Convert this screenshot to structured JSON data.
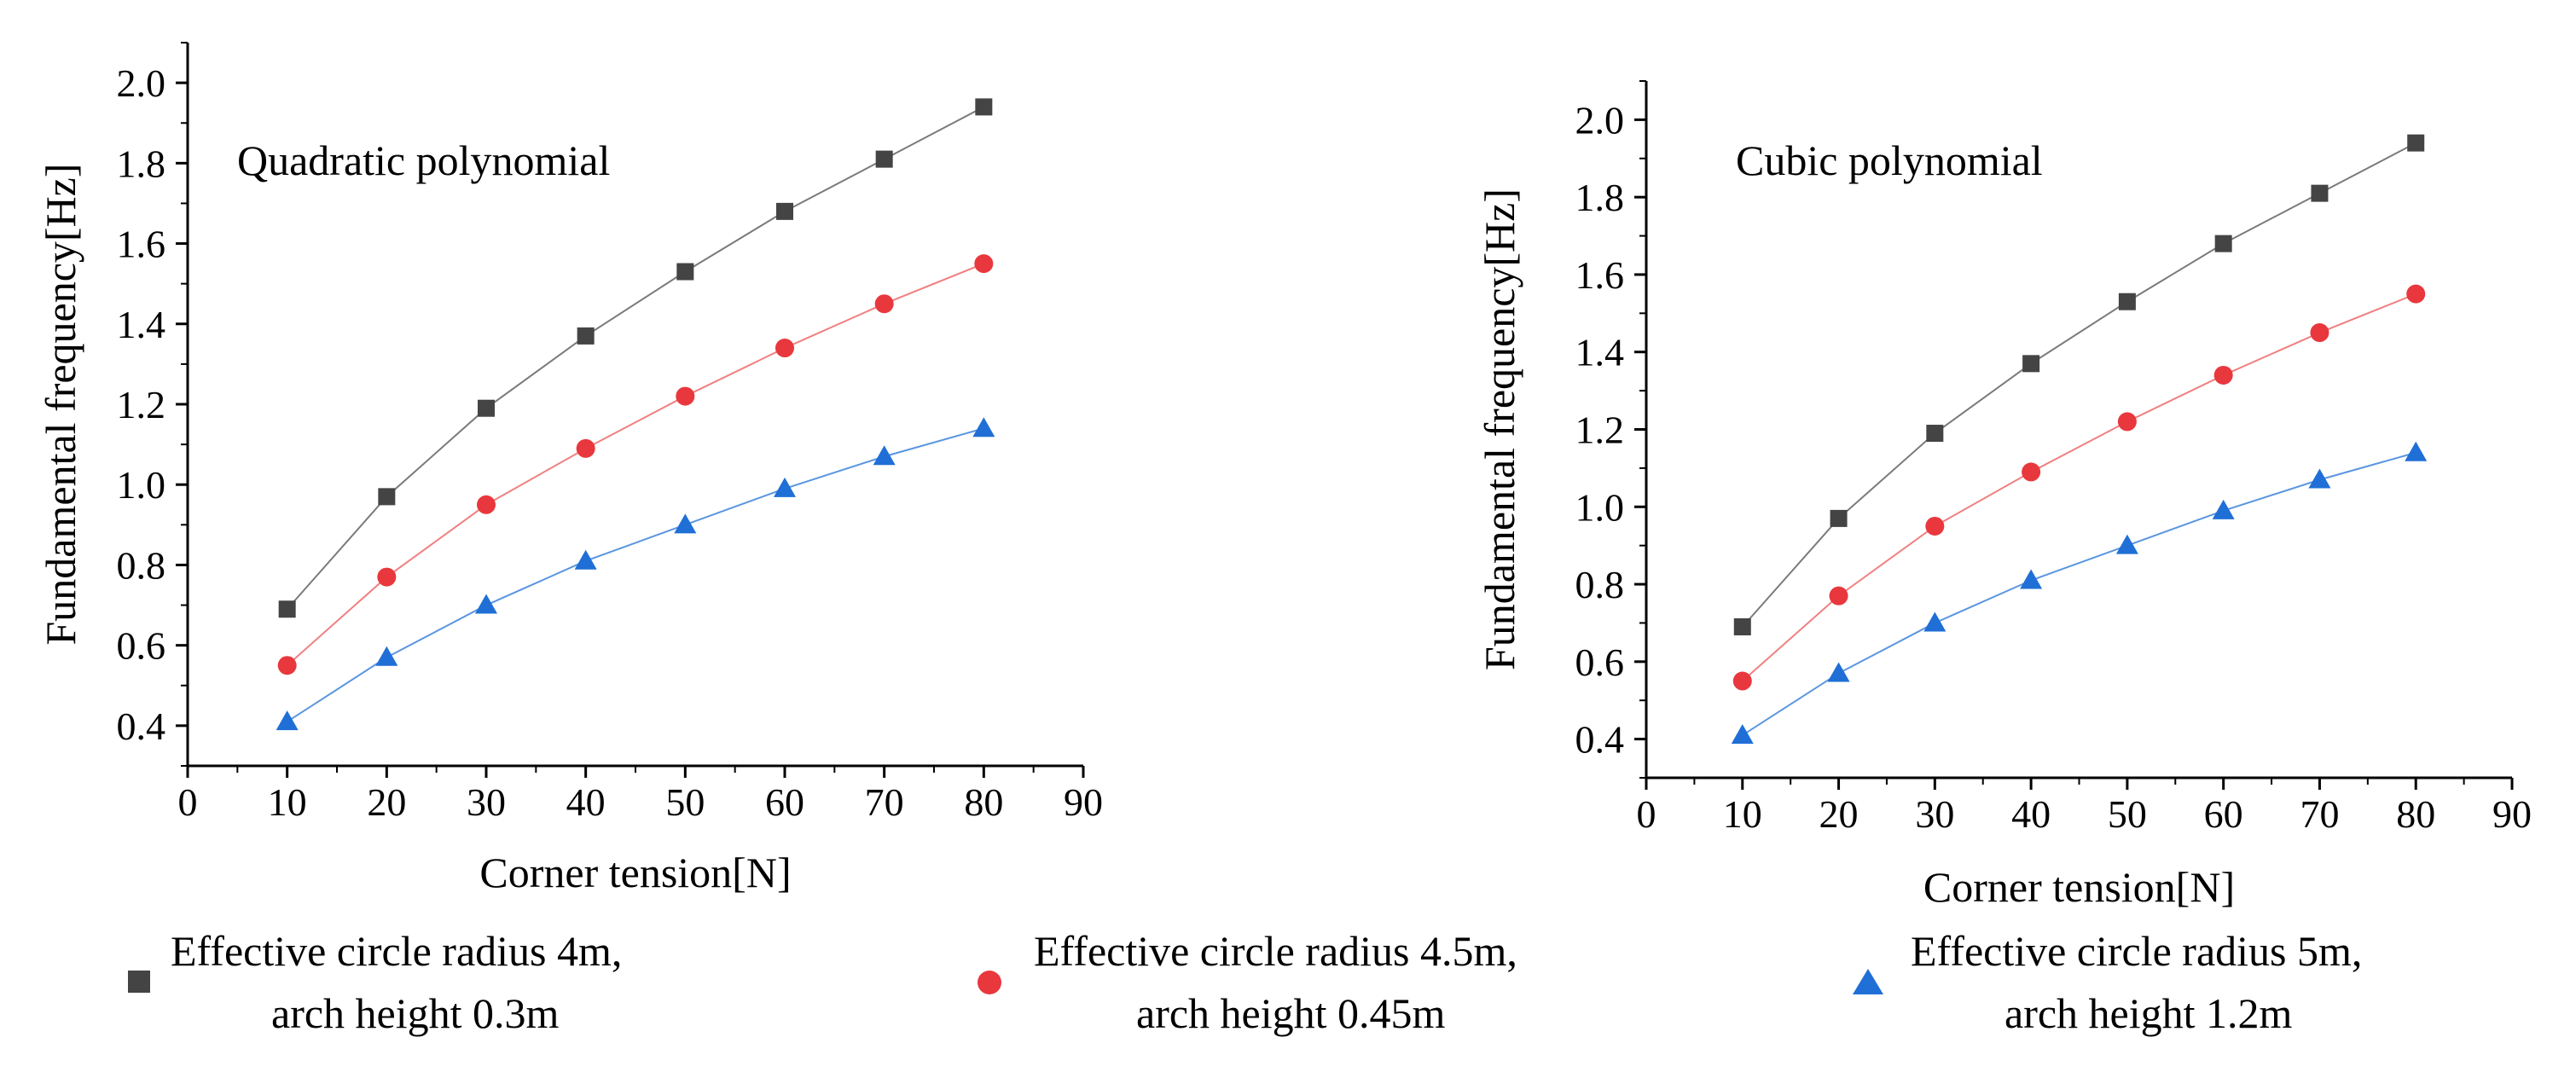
{
  "chart_data": [
    {
      "type": "line",
      "title": "Quadratic polynomial",
      "xlabel": "Corner tension[N]",
      "ylabel": "Fundamental frequency[Hz]",
      "xlim": [
        0,
        90
      ],
      "ylim": [
        0.3,
        2.1
      ],
      "x_ticks": [
        "0",
        "10",
        "20",
        "30",
        "40",
        "50",
        "60",
        "70",
        "80",
        "90"
      ],
      "y_ticks": [
        "0.4",
        "0.6",
        "0.8",
        "1.0",
        "1.2",
        "1.4",
        "1.6",
        "1.8",
        "2.0"
      ],
      "x": [
        10,
        20,
        30,
        40,
        50,
        60,
        70,
        80
      ],
      "series": [
        {
          "values": [
            0.69,
            0.97,
            1.19,
            1.37,
            1.53,
            1.68,
            1.81,
            1.94
          ]
        },
        {
          "values": [
            0.55,
            0.77,
            0.95,
            1.09,
            1.22,
            1.34,
            1.45,
            1.55
          ]
        },
        {
          "values": [
            0.41,
            0.57,
            0.7,
            0.81,
            0.9,
            0.99,
            1.07,
            1.14
          ]
        }
      ]
    },
    {
      "type": "line",
      "title": "Cubic polynomial",
      "xlabel": "Corner tension[N]",
      "ylabel": "Fundamental frequency[Hz]",
      "xlim": [
        0,
        90
      ],
      "ylim": [
        0.3,
        2.1
      ],
      "x_ticks": [
        "0",
        "10",
        "20",
        "30",
        "40",
        "50",
        "60",
        "70",
        "80",
        "90"
      ],
      "y_ticks": [
        "0.4",
        "0.6",
        "0.8",
        "1.0",
        "1.2",
        "1.4",
        "1.6",
        "1.8",
        "2.0"
      ],
      "x": [
        10,
        20,
        30,
        40,
        50,
        60,
        70,
        80
      ],
      "series": [
        {
          "values": [
            0.69,
            0.97,
            1.19,
            1.37,
            1.53,
            1.68,
            1.81,
            1.94
          ]
        },
        {
          "values": [
            0.55,
            0.77,
            0.95,
            1.09,
            1.22,
            1.34,
            1.45,
            1.55
          ]
        },
        {
          "values": [
            0.41,
            0.57,
            0.7,
            0.81,
            0.9,
            0.99,
            1.07,
            1.14
          ]
        }
      ]
    }
  ],
  "legend": [
    {
      "line1": "Effective circle radius 4m,",
      "line2": "arch height 0.3m",
      "marker": "square",
      "color": "#444444",
      "line_color": "#7a7a7a"
    },
    {
      "line1": "Effective circle radius 4.5m,",
      "line2": "arch height 0.45m",
      "marker": "circle",
      "color": "#e8383d",
      "line_color": "#f08080"
    },
    {
      "line1": "Effective circle radius 5m,",
      "line2": "arch height 1.2m",
      "marker": "triangle",
      "color": "#1f6fd6",
      "line_color": "#5a96e0"
    }
  ]
}
